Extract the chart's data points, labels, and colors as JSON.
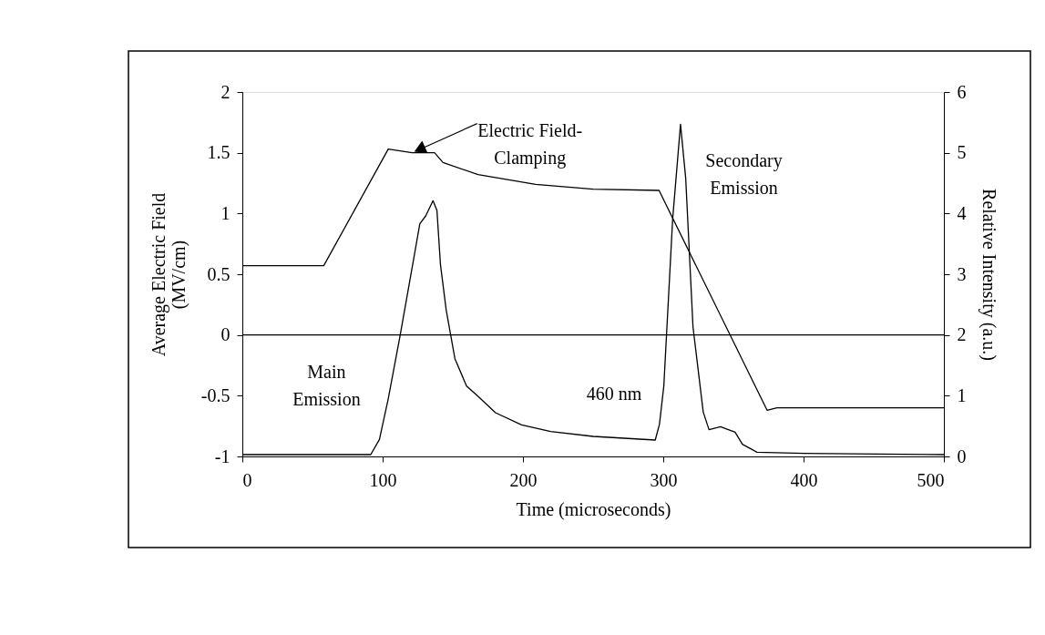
{
  "chart_data": {
    "type": "line",
    "xlabel": "Time (microseconds)",
    "ylabel": "Average Electric Field\n(MV/cm)",
    "y2label": "Relative Intensity (a.u.)",
    "xlim": [
      0,
      500
    ],
    "xticks": [
      0,
      100,
      200,
      300,
      400,
      500
    ],
    "ylim": [
      -1,
      2
    ],
    "yticks": [
      -1,
      -0.5,
      0,
      0.5,
      1,
      1.5,
      2
    ],
    "y2lim": [
      0,
      6
    ],
    "y2ticks": [
      0,
      1,
      2,
      3,
      4,
      5,
      6
    ],
    "grid": false,
    "marker": "none",
    "line_style": "solid",
    "ref_lines": [
      {
        "axis": "y",
        "value": 0,
        "color": "#000000"
      }
    ],
    "annotations": [
      {
        "text": "Electric Field-\nClamping",
        "x": 121,
        "y": 1.5
      },
      "Main\nEmission",
      "460 nm",
      "Secondary\nEmission"
    ],
    "series": [
      {
        "color": "#000000",
        "x": [
          0,
          58,
          104,
          121,
          137,
          143,
          168,
          209,
          250,
          297,
          374,
          381,
          500
        ],
        "values": [
          0.57,
          0.57,
          1.53,
          1.5,
          1.5,
          1.42,
          1.32,
          1.24,
          1.2,
          1.19,
          -0.62,
          -0.6,
          -0.6
        ]
      },
      {
        "color": "#000000",
        "axis": "y2",
        "x": [
          0,
          91.5,
          97.7,
          103.9,
          112.2,
          121.4,
          126.5,
          130.7,
          135.9,
          138.7,
          141.2,
          145.3,
          151.5,
          159.8,
          168,
          180.4,
          199,
          219.7,
          250,
          294.3,
          297.3,
          300.4,
          306.7,
          312.3,
          316,
          321.2,
          328.5,
          332.6,
          340.8,
          351.2,
          356.4,
          366.8,
          400,
          500
        ],
        "values": [
          0.03,
          0.03,
          0.28,
          0.94,
          1.96,
          3.16,
          3.83,
          3.96,
          4.21,
          4.05,
          3.16,
          2.41,
          1.61,
          1.16,
          0.99,
          0.72,
          0.52,
          0.41,
          0.33,
          0.27,
          0.53,
          1.16,
          3.91,
          5.47,
          4.58,
          2.13,
          0.73,
          0.44,
          0.49,
          0.4,
          0.2,
          0.07,
          0.05,
          0.03
        ]
      }
    ]
  }
}
